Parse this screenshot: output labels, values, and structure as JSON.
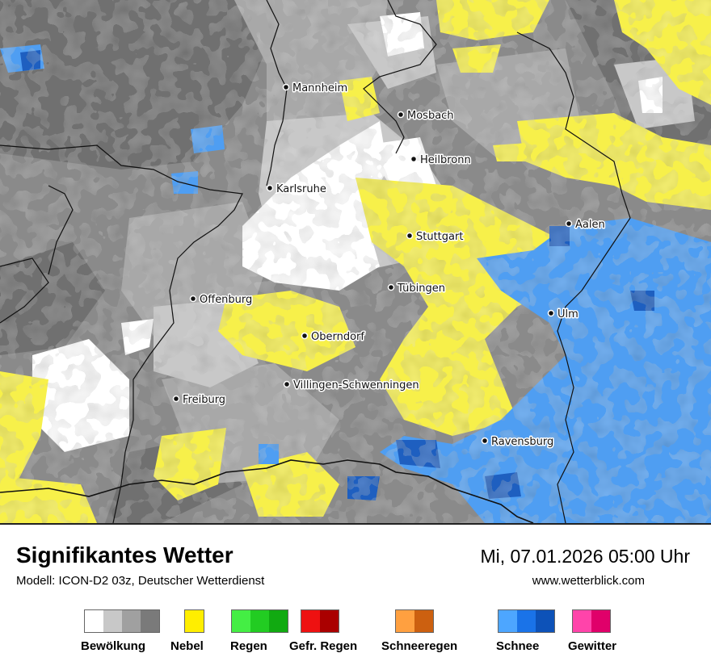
{
  "map": {
    "colors": {
      "cloud_light": "#c8c8c8",
      "cloud_mid": "#a8a8a8",
      "cloud_dark": "#8a8a8a",
      "cloud_darkest": "#707070",
      "clear": "#ffffff",
      "fog": "#f7f04a",
      "snow_light": "#4f9ef2",
      "snow_dark": "#1e5fc0",
      "border": "#111111"
    },
    "cities": [
      {
        "name": "Mannheim"
      },
      {
        "name": "Mosbach"
      },
      {
        "name": "Heilbronn"
      },
      {
        "name": "Karlsruhe"
      },
      {
        "name": "Aalen"
      },
      {
        "name": "Stuttgart"
      },
      {
        "name": "Tübingen"
      },
      {
        "name": "Offenburg"
      },
      {
        "name": "Ulm"
      },
      {
        "name": "Oberndorf"
      },
      {
        "name": "Villingen-Schwenningen"
      },
      {
        "name": "Freiburg"
      },
      {
        "name": "Ravensburg"
      }
    ]
  },
  "footer": {
    "title": "Signifikantes Wetter",
    "model": "Modell: ICON-D2 03z, Deutscher Wetterdienst",
    "datetime": "Mi, 07.01.2026 05:00 Uhr",
    "website": "www.wetterblick.com"
  },
  "legend": [
    {
      "label": "Bewölkung",
      "colors": [
        "#ffffff",
        "#c8c8c8",
        "#a0a0a0",
        "#7a7a7a"
      ]
    },
    {
      "label": "Nebel",
      "colors": [
        "#ffee00"
      ]
    },
    {
      "label": "Regen",
      "colors": [
        "#44ee44",
        "#22cc22",
        "#11aa11"
      ]
    },
    {
      "label": "Gefr. Regen",
      "colors": [
        "#ee1111",
        "#aa0000"
      ]
    },
    {
      "label": "Schneeregen",
      "colors": [
        "#ffa040",
        "#cc6010"
      ]
    },
    {
      "label": "Schnee",
      "colors": [
        "#4da6ff",
        "#1a73e8",
        "#0d52b8"
      ]
    },
    {
      "label": "Gewitter",
      "colors": [
        "#ff44aa",
        "#e0006a"
      ]
    }
  ]
}
